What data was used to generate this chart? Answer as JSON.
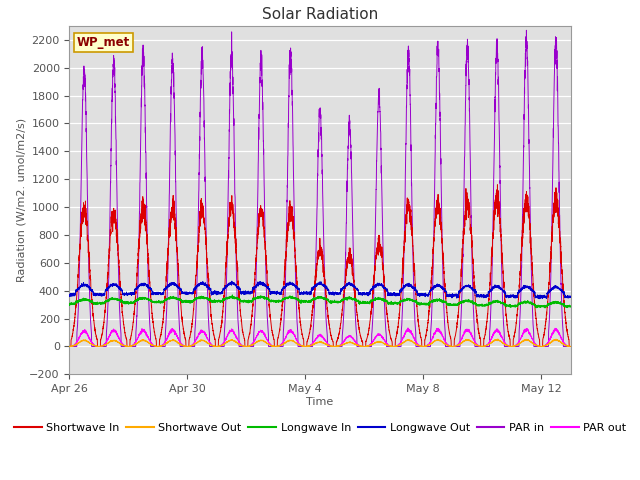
{
  "title": "Solar Radiation",
  "xlabel": "Time",
  "ylabel": "Radiation (W/m2. umol/m2/s)",
  "ylim": [
    -200,
    2300
  ],
  "yticks": [
    -200,
    0,
    200,
    400,
    600,
    800,
    1000,
    1200,
    1400,
    1600,
    1800,
    2000,
    2200
  ],
  "xtick_labels": [
    "Apr 26",
    "Apr 30",
    "May 4",
    "May 8",
    "May 12"
  ],
  "xtick_positions": [
    0,
    4,
    8,
    12,
    16
  ],
  "station_label": "WP_met",
  "bg_color": "#e0e0e0",
  "colors": {
    "shortwave_in": "#dd0000",
    "shortwave_out": "#ffaa00",
    "longwave_in": "#00bb00",
    "longwave_out": "#0000cc",
    "par_in": "#9900cc",
    "par_out": "#ff00ff"
  },
  "n_days": 17,
  "pts_per_day": 288,
  "title_fontsize": 11,
  "label_fontsize": 8,
  "tick_fontsize": 8,
  "legend_fontsize": 8
}
